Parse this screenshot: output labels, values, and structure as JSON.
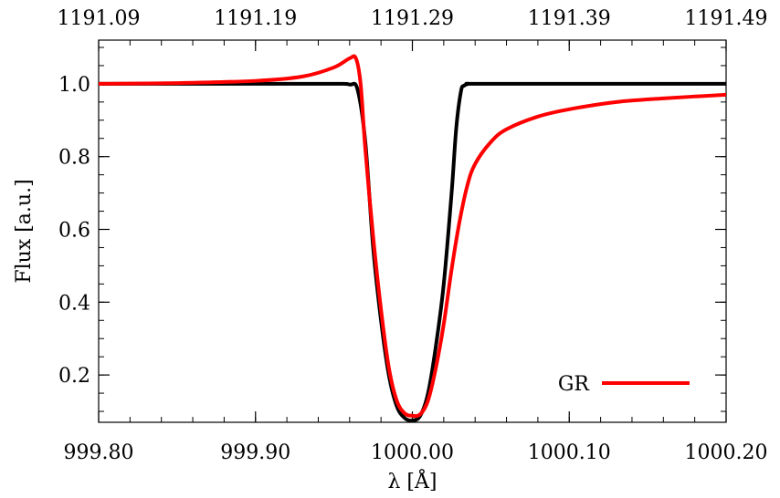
{
  "chart_data": {
    "type": "line",
    "title": "",
    "xlabel": "λ [Å]",
    "ylabel": "Flux [a.u.]",
    "xlim": [
      999.8,
      1000.2
    ],
    "ylim": [
      0.07,
      1.12
    ],
    "x_ticks": [
      999.8,
      999.9,
      1000.0,
      1000.1,
      1000.2
    ],
    "x_tick_labels": [
      "999.80",
      "999.90",
      "1000.00",
      "1000.10",
      "1000.20"
    ],
    "y_ticks": [
      0.2,
      0.4,
      0.6,
      0.8,
      1.0
    ],
    "y_tick_labels": [
      "0.2",
      "0.4",
      "0.6",
      "0.8",
      "1.0"
    ],
    "top_axis": {
      "ticks_at_bottom_x": [
        999.8,
        999.9,
        1000.0,
        1000.1,
        1000.2
      ],
      "tick_labels": [
        "1191.09",
        "1191.19",
        "1191.29",
        "1191.39",
        "1191.49"
      ]
    },
    "grid": false,
    "legend_position": "bottom-right",
    "series": [
      {
        "color": "#000000",
        "x": [
          999.8,
          999.9,
          999.95,
          999.96,
          999.965,
          999.97,
          999.975,
          999.98,
          999.985,
          999.99,
          999.995,
          1000.0,
          1000.005,
          1000.01,
          1000.015,
          1000.02,
          1000.025,
          1000.028,
          1000.031,
          1000.033,
          1000.036,
          1000.04,
          1000.1,
          1000.2
        ],
        "y": [
          1.0,
          1.0,
          1.0,
          0.998,
          0.985,
          0.84,
          0.55,
          0.35,
          0.2,
          0.115,
          0.082,
          0.075,
          0.088,
          0.15,
          0.28,
          0.45,
          0.7,
          0.88,
          0.98,
          0.995,
          1.0,
          1.0,
          1.0,
          1.0
        ]
      },
      {
        "name": "GR",
        "color": "#ff0000",
        "x": [
          999.8,
          999.85,
          999.9,
          999.93,
          999.95,
          999.96,
          999.964,
          999.967,
          999.97,
          999.975,
          999.98,
          999.985,
          999.99,
          999.995,
          1000.0,
          1000.005,
          1000.01,
          1000.015,
          1000.02,
          1000.025,
          1000.03,
          1000.035,
          1000.04,
          1000.05,
          1000.06,
          1000.08,
          1000.1,
          1000.13,
          1000.16,
          1000.2
        ],
        "y": [
          1.0,
          1.002,
          1.008,
          1.02,
          1.045,
          1.07,
          1.07,
          1.0,
          0.82,
          0.58,
          0.38,
          0.22,
          0.13,
          0.095,
          0.088,
          0.092,
          0.13,
          0.22,
          0.34,
          0.49,
          0.62,
          0.72,
          0.78,
          0.84,
          0.875,
          0.91,
          0.93,
          0.95,
          0.96,
          0.97
        ]
      }
    ]
  }
}
